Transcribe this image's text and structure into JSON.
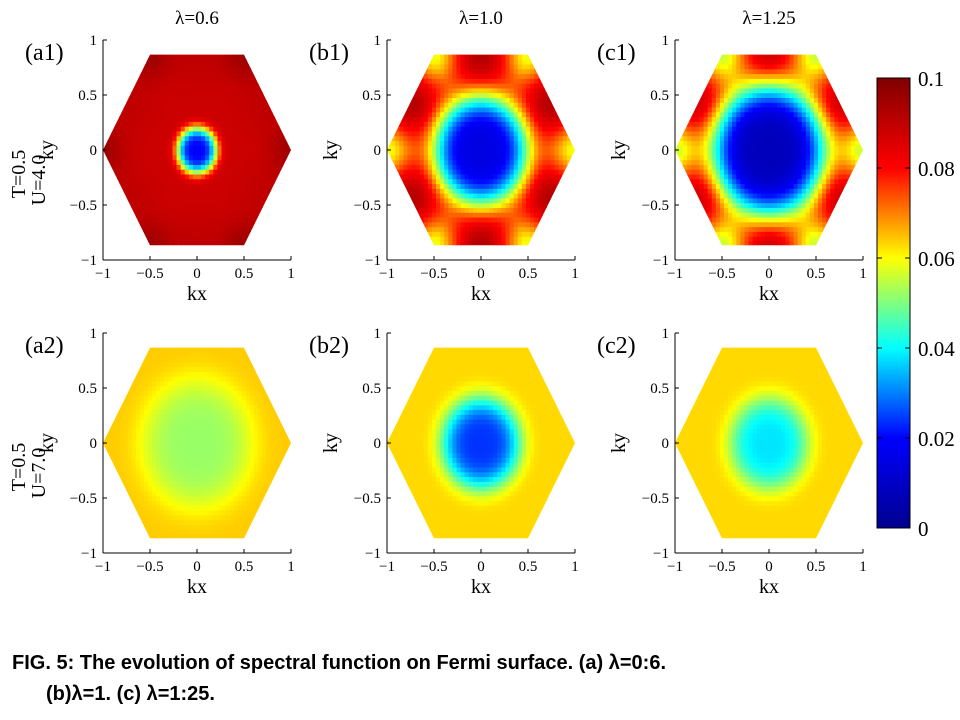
{
  "chart_data": [
    {
      "type": "heatmap",
      "panel_label": "(a1)",
      "column_title": "λ=0.6",
      "row_labels": [
        "T=0.5",
        "U=4.0"
      ],
      "xlabel": "kx",
      "ylabel": "ky",
      "xlim": [
        -1,
        1
      ],
      "ylim": [
        -1,
        1
      ],
      "xticks": [
        "−1",
        "−0.5",
        "0",
        "0.5",
        "1"
      ],
      "yticks": [
        "1",
        "0.5",
        "0",
        "−0.5",
        "−1"
      ],
      "pattern": {
        "center": 0.02,
        "center_radius": 0.22,
        "edge": 0.088,
        "vertex": 0.095,
        "mid_edge": 0.09
      }
    },
    {
      "type": "heatmap",
      "panel_label": "(b1)",
      "column_title": "λ=1.0",
      "row_labels": [],
      "xlabel": "kx",
      "ylabel": "ky",
      "xlim": [
        -1,
        1
      ],
      "ylim": [
        -1,
        1
      ],
      "xticks": [
        "−1",
        "−0.5",
        "0",
        "0.5",
        "1"
      ],
      "yticks": [
        "1",
        "0.5",
        "0",
        "−0.5",
        "−1"
      ],
      "pattern": {
        "center": 0.015,
        "center_radius": 0.5,
        "edge": 0.075,
        "vertex": 0.058,
        "mid_edge": 0.092
      }
    },
    {
      "type": "heatmap",
      "panel_label": "(c1)",
      "column_title": "λ=1.25",
      "row_labels": [],
      "xlabel": "kx",
      "ylabel": "ky",
      "xlim": [
        -1,
        1
      ],
      "ylim": [
        -1,
        1
      ],
      "xticks": [
        "−1",
        "−0.5",
        "0",
        "0.5",
        "1"
      ],
      "yticks": [
        "1",
        "0.5",
        "0",
        "−0.5",
        "−1"
      ],
      "pattern": {
        "center": 0.008,
        "center_radius": 0.6,
        "edge": 0.072,
        "vertex": 0.055,
        "mid_edge": 0.088
      }
    },
    {
      "type": "heatmap",
      "panel_label": "(a2)",
      "column_title": "",
      "row_labels": [
        "T=0.5",
        "U=7.0"
      ],
      "xlabel": "kx",
      "ylabel": "ky",
      "xlim": [
        -1,
        1
      ],
      "ylim": [
        -1,
        1
      ],
      "xticks": [
        "−1",
        "−0.5",
        "0",
        "0.5",
        "1"
      ],
      "yticks": [
        "1",
        "0.5",
        "0",
        "−0.5",
        "−1"
      ],
      "pattern": {
        "center": 0.052,
        "center_radius": 0.6,
        "edge": 0.064,
        "vertex": 0.064,
        "mid_edge": 0.064
      }
    },
    {
      "type": "heatmap",
      "panel_label": "(b2)",
      "column_title": "",
      "row_labels": [],
      "xlabel": "kx",
      "ylabel": "ky",
      "xlim": [
        -1,
        1
      ],
      "ylim": [
        -1,
        1
      ],
      "xticks": [
        "−1",
        "−0.5",
        "0",
        "0.5",
        "1"
      ],
      "yticks": [
        "1",
        "0.5",
        "0",
        "−0.5",
        "−1"
      ],
      "pattern": {
        "center": 0.024,
        "center_radius": 0.42,
        "edge": 0.063,
        "vertex": 0.063,
        "mid_edge": 0.063
      }
    },
    {
      "type": "heatmap",
      "panel_label": "(c2)",
      "column_title": "",
      "row_labels": [],
      "xlabel": "kx",
      "ylabel": "ky",
      "xlim": [
        -1,
        1
      ],
      "ylim": [
        -1,
        1
      ],
      "xticks": [
        "−1",
        "−0.5",
        "0",
        "0.5",
        "1"
      ],
      "yticks": [
        "1",
        "0.5",
        "0",
        "−0.5",
        "−1"
      ],
      "pattern": {
        "center": 0.038,
        "center_radius": 0.42,
        "edge": 0.063,
        "vertex": 0.063,
        "mid_edge": 0.063
      }
    }
  ],
  "colorbar": {
    "min": 0,
    "max": 0.1,
    "ticks": [
      "0.1",
      "0.08",
      "0.06",
      "0.04",
      "0.02",
      "0"
    ],
    "colormap": "jet",
    "colors": [
      "#00008f",
      "#0000ff",
      "#00ffff",
      "#ffff00",
      "#ff0000",
      "#800000"
    ]
  },
  "caption": {
    "line1": "FIG. 5: The evolution of spectral function on Fermi surface. (a) λ=0:6.",
    "line2": "(b)λ=1. (c) λ=1:25."
  }
}
